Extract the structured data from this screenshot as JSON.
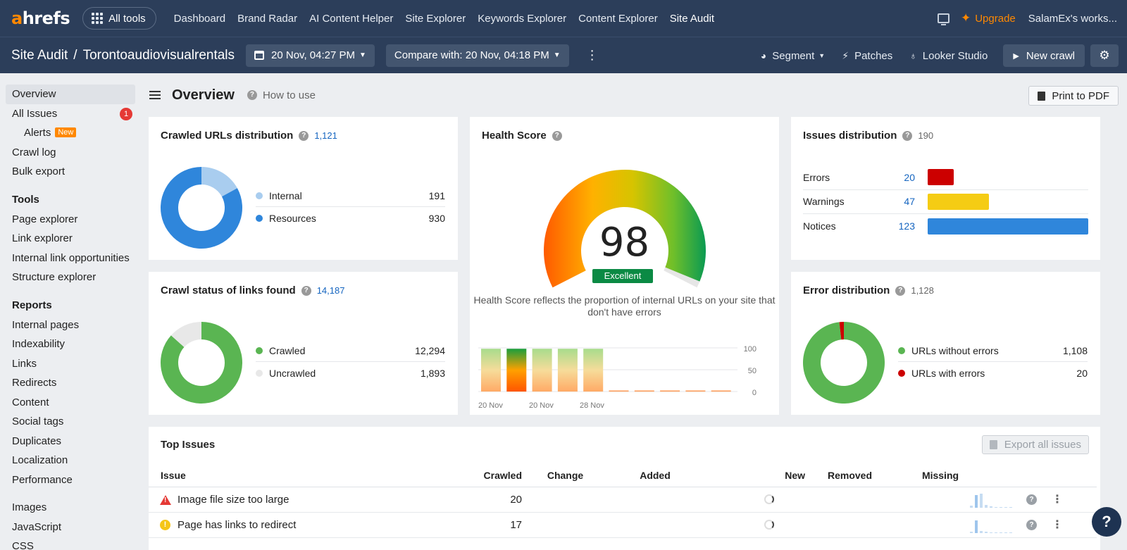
{
  "brand": {
    "logo_a": "a",
    "logo_rest": "hrefs",
    "accent": "#ff8800"
  },
  "topnav": {
    "all_tools": "All tools",
    "links": [
      "Dashboard",
      "Brand Radar",
      "AI Content Helper",
      "Site Explorer",
      "Keywords Explorer",
      "Content Explorer",
      "Site Audit"
    ],
    "active": "Site Audit",
    "upgrade": "Upgrade",
    "workspace": "SalamEx's works..."
  },
  "subheader": {
    "section": "Site Audit",
    "separator": "/",
    "project": "Torontoaudiovisualrentals",
    "date": "20 Nov, 04:27 PM",
    "compare": "Compare with: 20 Nov, 04:18 PM",
    "segment": "Segment",
    "patches": "Patches",
    "looker": "Looker Studio",
    "new_crawl": "New crawl"
  },
  "sidebar": {
    "overview": "Overview",
    "all_issues": "All Issues",
    "all_issues_badge": "1",
    "alerts": "Alerts",
    "alerts_badge": "New",
    "crawl_log": "Crawl log",
    "bulk_export": "Bulk export",
    "tools_heading": "Tools",
    "tools": [
      "Page explorer",
      "Link explorer",
      "Internal link opportunities",
      "Structure explorer"
    ],
    "reports_heading": "Reports",
    "reports": [
      "Internal pages",
      "Indexability",
      "Links",
      "Redirects",
      "Content",
      "Social tags",
      "Duplicates",
      "Localization",
      "Performance"
    ],
    "more": [
      "Images",
      "JavaScript",
      "CSS"
    ]
  },
  "main": {
    "title": "Overview",
    "how_to": "How to use",
    "print": "Print to PDF"
  },
  "crawled_urls": {
    "title": "Crawled URLs distribution",
    "count": "1,121",
    "items": [
      {
        "label": "Internal",
        "value": "191",
        "color": "#a9cdef"
      },
      {
        "label": "Resources",
        "value": "930",
        "color": "#2f86db"
      }
    ]
  },
  "crawl_status": {
    "title": "Crawl status of links found",
    "count": "14,187",
    "items": [
      {
        "label": "Crawled",
        "value": "12,294",
        "color": "#5ab552"
      },
      {
        "label": "Uncrawled",
        "value": "1,893",
        "color": "#e8e8e8"
      }
    ]
  },
  "health": {
    "title": "Health Score",
    "score": "98",
    "rating": "Excellent",
    "description": "Health Score reflects the proportion of internal URLs on your site that don't have errors",
    "chart": {
      "y_ticks": [
        "100",
        "50",
        "0"
      ],
      "x_ticks": [
        "20 Nov",
        "20 Nov",
        "28 Nov"
      ],
      "bars": [
        98,
        98,
        98,
        98,
        98,
        0,
        0,
        0,
        0,
        0
      ]
    }
  },
  "issues_distribution": {
    "title": "Issues distribution",
    "count": "190",
    "rows": [
      {
        "label": "Errors",
        "value": "20",
        "num": 20,
        "color": "#cc0000"
      },
      {
        "label": "Warnings",
        "value": "47",
        "num": 47,
        "color": "#f5cc14"
      },
      {
        "label": "Notices",
        "value": "123",
        "num": 123,
        "color": "#2f86db"
      }
    ]
  },
  "error_distribution": {
    "title": "Error distribution",
    "count": "1,128",
    "items": [
      {
        "label": "URLs without errors",
        "value": "1,108",
        "color": "#5ab552"
      },
      {
        "label": "URLs with errors",
        "value": "20",
        "color": "#cc0000"
      }
    ]
  },
  "top_issues": {
    "title": "Top Issues",
    "export": "Export all issues",
    "columns": [
      "Issue",
      "Crawled",
      "Change",
      "Added",
      "New",
      "Removed",
      "Missing"
    ],
    "rows": [
      {
        "issue": "Image file size too large",
        "crawled": "20",
        "type": "error"
      },
      {
        "issue": "Page has links to redirect",
        "crawled": "17",
        "type": "notice"
      }
    ]
  },
  "help": "?"
}
